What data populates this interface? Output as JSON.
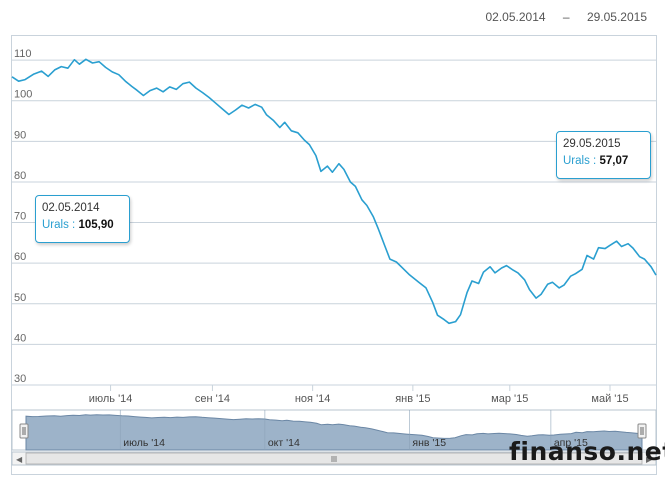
{
  "header": {
    "range_start": "02.05.2014",
    "range_separator": "–",
    "range_end": "29.05.2015"
  },
  "chart_data": {
    "type": "line",
    "title": "",
    "xlabel": "",
    "ylabel": "",
    "ylim": [
      30,
      112
    ],
    "yticks": [
      30,
      40,
      50,
      60,
      70,
      80,
      90,
      100,
      110
    ],
    "xticks": [
      {
        "date": "2014-07-01",
        "label": "июль '14"
      },
      {
        "date": "2014-09-01",
        "label": "сен '14"
      },
      {
        "date": "2014-11-01",
        "label": "ноя '14"
      },
      {
        "date": "2015-01-01",
        "label": "янв '15"
      },
      {
        "date": "2015-03-01",
        "label": "мар '15"
      },
      {
        "date": "2015-05-01",
        "label": "май '15"
      }
    ],
    "grid": true,
    "series": [
      {
        "name": "Urals",
        "color": "#2a9fd0",
        "points": [
          [
            "2014-05-02",
            105.9
          ],
          [
            "2014-05-06",
            104.8
          ],
          [
            "2014-05-10",
            105.2
          ],
          [
            "2014-05-15",
            106.5
          ],
          [
            "2014-05-20",
            107.3
          ],
          [
            "2014-05-24",
            106.0
          ],
          [
            "2014-05-28",
            107.6
          ],
          [
            "2014-06-01",
            108.4
          ],
          [
            "2014-06-05",
            108.0
          ],
          [
            "2014-06-09",
            110.1
          ],
          [
            "2014-06-12",
            109.0
          ],
          [
            "2014-06-16",
            110.2
          ],
          [
            "2014-06-20",
            109.3
          ],
          [
            "2014-06-24",
            109.6
          ],
          [
            "2014-06-28",
            108.2
          ],
          [
            "2014-07-02",
            107.1
          ],
          [
            "2014-07-06",
            106.4
          ],
          [
            "2014-07-10",
            104.8
          ],
          [
            "2014-07-14",
            103.5
          ],
          [
            "2014-07-17",
            102.6
          ],
          [
            "2014-07-21",
            101.3
          ],
          [
            "2014-07-25",
            102.5
          ],
          [
            "2014-07-29",
            103.1
          ],
          [
            "2014-08-02",
            102.2
          ],
          [
            "2014-08-06",
            103.4
          ],
          [
            "2014-08-10",
            102.8
          ],
          [
            "2014-08-14",
            104.2
          ],
          [
            "2014-08-18",
            104.6
          ],
          [
            "2014-08-22",
            103.1
          ],
          [
            "2014-08-26",
            102.0
          ],
          [
            "2014-08-30",
            100.8
          ],
          [
            "2014-09-03",
            99.4
          ],
          [
            "2014-09-07",
            98.0
          ],
          [
            "2014-09-11",
            96.6
          ],
          [
            "2014-09-15",
            97.7
          ],
          [
            "2014-09-19",
            98.9
          ],
          [
            "2014-09-23",
            98.2
          ],
          [
            "2014-09-27",
            99.1
          ],
          [
            "2014-10-01",
            98.4
          ],
          [
            "2014-10-04",
            96.5
          ],
          [
            "2014-10-08",
            95.2
          ],
          [
            "2014-10-12",
            93.4
          ],
          [
            "2014-10-15",
            94.7
          ],
          [
            "2014-10-19",
            92.6
          ],
          [
            "2014-10-23",
            92.1
          ],
          [
            "2014-10-27",
            90.3
          ],
          [
            "2014-10-30",
            89.2
          ],
          [
            "2014-11-03",
            86.5
          ],
          [
            "2014-11-06",
            82.6
          ],
          [
            "2014-11-10",
            83.9
          ],
          [
            "2014-11-13",
            82.4
          ],
          [
            "2014-11-17",
            84.5
          ],
          [
            "2014-11-20",
            83.1
          ],
          [
            "2014-11-24",
            80.0
          ],
          [
            "2014-11-27",
            78.9
          ],
          [
            "2014-12-01",
            75.6
          ],
          [
            "2014-12-04",
            74.2
          ],
          [
            "2014-12-08",
            71.4
          ],
          [
            "2014-12-11",
            68.4
          ],
          [
            "2014-12-15",
            64.2
          ],
          [
            "2014-12-18",
            61.0
          ],
          [
            "2014-12-22",
            60.3
          ],
          [
            "2014-12-26",
            58.7
          ],
          [
            "2014-12-30",
            57.1
          ],
          [
            "2015-01-05",
            55.2
          ],
          [
            "2015-01-09",
            53.9
          ],
          [
            "2015-01-13",
            50.4
          ],
          [
            "2015-01-16",
            47.2
          ],
          [
            "2015-01-20",
            46.1
          ],
          [
            "2015-01-23",
            45.2
          ],
          [
            "2015-01-27",
            45.6
          ],
          [
            "2015-01-30",
            47.3
          ],
          [
            "2015-02-03",
            52.8
          ],
          [
            "2015-02-06",
            55.6
          ],
          [
            "2015-02-10",
            55.0
          ],
          [
            "2015-02-13",
            57.8
          ],
          [
            "2015-02-17",
            59.1
          ],
          [
            "2015-02-20",
            57.6
          ],
          [
            "2015-02-24",
            58.8
          ],
          [
            "2015-02-27",
            59.4
          ],
          [
            "2015-03-03",
            58.3
          ],
          [
            "2015-03-06",
            57.6
          ],
          [
            "2015-03-10",
            55.9
          ],
          [
            "2015-03-13",
            53.5
          ],
          [
            "2015-03-17",
            51.4
          ],
          [
            "2015-03-20",
            52.3
          ],
          [
            "2015-03-24",
            54.8
          ],
          [
            "2015-03-27",
            55.3
          ],
          [
            "2015-03-31",
            53.9
          ],
          [
            "2015-04-03",
            54.6
          ],
          [
            "2015-04-07",
            56.8
          ],
          [
            "2015-04-10",
            57.4
          ],
          [
            "2015-04-14",
            58.5
          ],
          [
            "2015-04-17",
            61.9
          ],
          [
            "2015-04-21",
            61.0
          ],
          [
            "2015-04-24",
            63.8
          ],
          [
            "2015-04-28",
            63.6
          ],
          [
            "2015-05-01",
            64.4
          ],
          [
            "2015-05-05",
            65.4
          ],
          [
            "2015-05-08",
            64.1
          ],
          [
            "2015-05-12",
            64.8
          ],
          [
            "2015-05-15",
            63.7
          ],
          [
            "2015-05-19",
            61.6
          ],
          [
            "2015-05-22",
            61.0
          ],
          [
            "2015-05-26",
            59.1
          ],
          [
            "2015-05-29",
            57.07
          ]
        ]
      }
    ],
    "tooltips": [
      {
        "date": "02.05.2014",
        "series": "Urals",
        "separator": ":",
        "value": "105,90"
      },
      {
        "date": "29.05.2015",
        "series": "Urals",
        "separator": ":",
        "value": "57,07"
      }
    ],
    "navigator": {
      "labels": [
        "июль '14",
        "окт '14",
        "янв '15",
        "апр '15"
      ],
      "label_dates": [
        "2014-07-01",
        "2014-10-01",
        "2015-01-01",
        "2015-04-01"
      ],
      "fill_color": "#9db3c9",
      "line_color": "#6b87a5"
    }
  },
  "watermark": "finanso.net"
}
